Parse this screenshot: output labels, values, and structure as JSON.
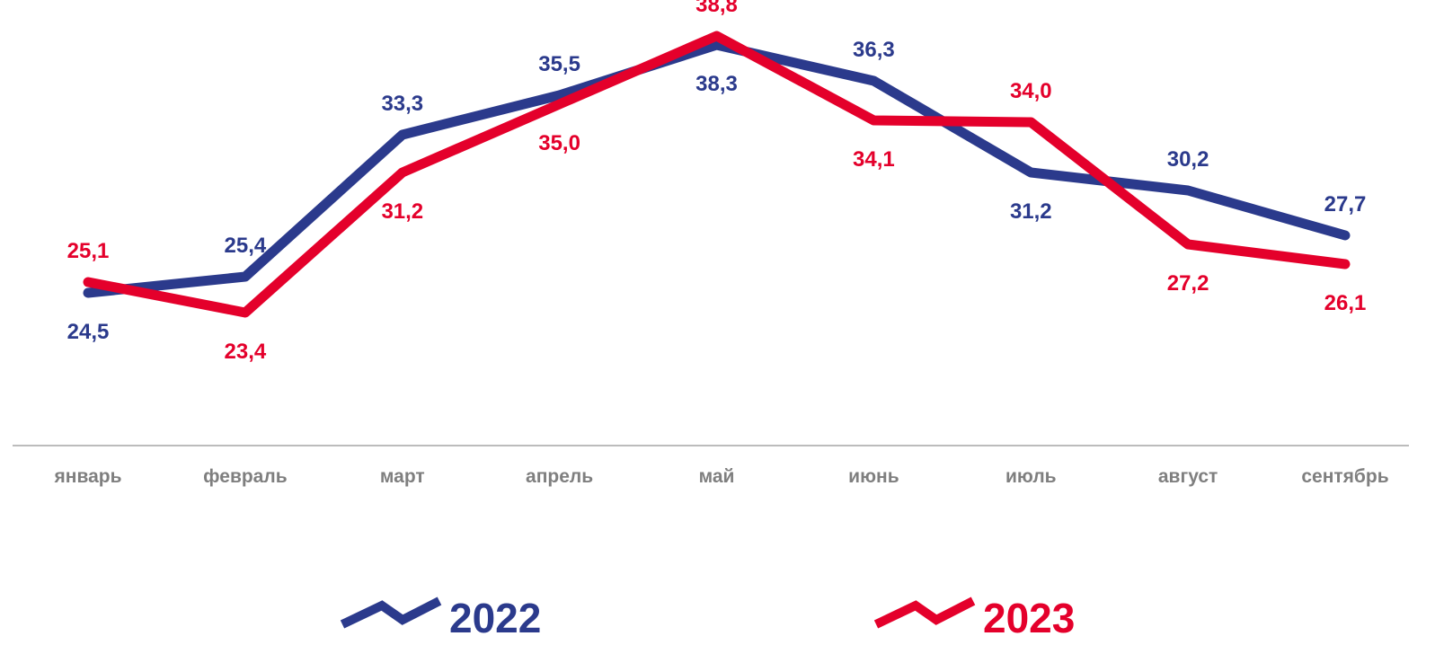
{
  "chart_data": {
    "type": "line",
    "categories": [
      "январь",
      "февраль",
      "март",
      "апрель",
      "май",
      "июнь",
      "июль",
      "август",
      "сентябрь"
    ],
    "series": [
      {
        "name": "2022",
        "color": "#2b3a8c",
        "values": [
          24.5,
          25.4,
          33.3,
          35.5,
          38.3,
          36.3,
          31.2,
          30.2,
          27.7
        ],
        "labels": [
          "24,5",
          "25,4",
          "33,3",
          "35,5",
          "38,3",
          "36,3",
          "31,2",
          "30,2",
          "27,7"
        ]
      },
      {
        "name": "2023",
        "color": "#e4002b",
        "values": [
          25.1,
          23.4,
          31.2,
          35.0,
          38.8,
          34.1,
          34.0,
          27.2,
          26.1
        ],
        "labels": [
          "25,1",
          "23,4",
          "31,2",
          "35,0",
          "38,8",
          "34,1",
          "34,0",
          "27,2",
          "26,1"
        ]
      }
    ],
    "title": "",
    "xlabel": "",
    "ylabel": "",
    "ylim": [
      16,
      40
    ],
    "grid": false,
    "legend": "bottom"
  }
}
